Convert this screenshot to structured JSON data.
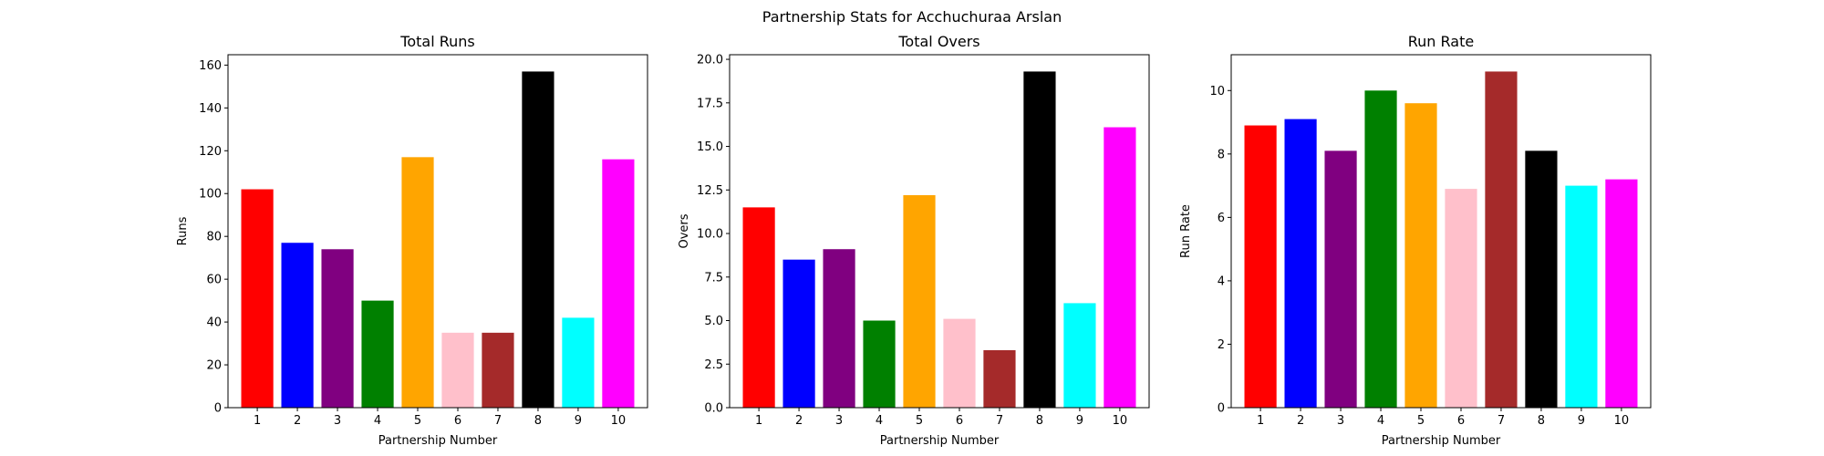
{
  "chart_data": {
    "suptitle": "Partnership Stats for Acchuchuraa Arslan",
    "type": "bar",
    "panels": [
      {
        "type": "bar",
        "title": "Total Runs",
        "xlabel": "Partnership Number",
        "ylabel": "Runs",
        "categories": [
          "1",
          "2",
          "3",
          "4",
          "5",
          "6",
          "7",
          "8",
          "9",
          "10"
        ],
        "values": [
          102,
          77,
          74,
          50,
          117,
          35,
          35,
          157,
          42,
          116
        ],
        "ylim": [
          0,
          164.85
        ],
        "yticks": [
          0,
          20,
          40,
          60,
          80,
          100,
          120,
          140,
          160
        ],
        "ytick_labels": [
          "0",
          "20",
          "40",
          "60",
          "80",
          "100",
          "120",
          "140",
          "160"
        ],
        "grid": false
      },
      {
        "type": "bar",
        "title": "Total Overs",
        "xlabel": "Partnership Number",
        "ylabel": "Overs",
        "categories": [
          "1",
          "2",
          "3",
          "4",
          "5",
          "6",
          "7",
          "8",
          "9",
          "10"
        ],
        "values": [
          11.5,
          8.5,
          9.1,
          5.0,
          12.2,
          5.1,
          3.3,
          19.3,
          6.0,
          16.1
        ],
        "ylim": [
          0,
          20.265
        ],
        "yticks": [
          0,
          2.5,
          5.0,
          7.5,
          10.0,
          12.5,
          15.0,
          17.5,
          20.0
        ],
        "ytick_labels": [
          "0.0",
          "2.5",
          "5.0",
          "7.5",
          "10.0",
          "12.5",
          "15.0",
          "17.5",
          "20.0"
        ],
        "grid": false
      },
      {
        "type": "bar",
        "title": "Run Rate",
        "xlabel": "Partnership Number",
        "ylabel": "Run Rate",
        "categories": [
          "1",
          "2",
          "3",
          "4",
          "5",
          "6",
          "7",
          "8",
          "9",
          "10"
        ],
        "values": [
          8.9,
          9.1,
          8.1,
          10.0,
          9.6,
          6.9,
          10.6,
          8.1,
          7.0,
          7.2
        ],
        "ylim": [
          0,
          11.13
        ],
        "yticks": [
          0,
          2,
          4,
          6,
          8,
          10
        ],
        "ytick_labels": [
          "0",
          "2",
          "4",
          "6",
          "8",
          "10"
        ],
        "grid": false
      }
    ],
    "bar_colors": [
      "#ff0000",
      "#0000ff",
      "#800080",
      "#008000",
      "#ffa500",
      "#ffc0cb",
      "#a52a2a",
      "#000000",
      "#00ffff",
      "#ff00ff"
    ]
  }
}
